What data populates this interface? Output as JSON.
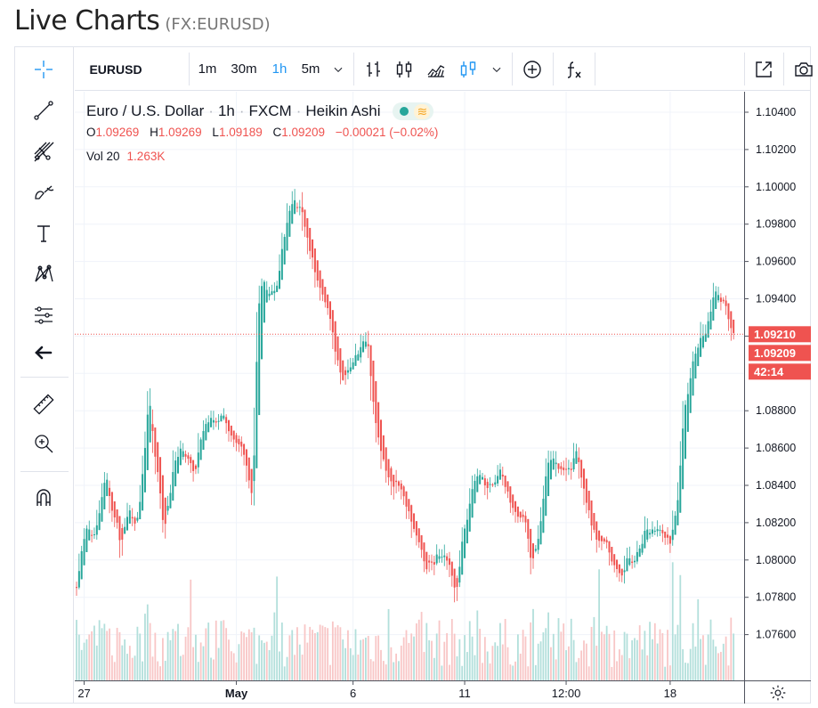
{
  "page": {
    "title": "Live Charts",
    "symbol": "(FX:EURUSD)"
  },
  "toolbar": {
    "symbol": "EURUSD",
    "intervals": [
      "1m",
      "30m",
      "1h",
      "5m"
    ],
    "active_interval": "1h",
    "icons": [
      "chevron-down-icon",
      "bars-icon",
      "candles-icon",
      "area-icon",
      "heikin-ashi-icon",
      "chevron-down-icon",
      "compare-plus-icon",
      "indicators-fx-icon",
      "popout-icon",
      "camera-icon"
    ]
  },
  "left_tools": [
    "crosshair-icon",
    "trend-line-icon",
    "fib-icon",
    "brush-icon",
    "text-icon",
    "pattern-icon",
    "prediction-icon",
    "back-arrow-icon",
    "ruler-icon",
    "zoom-icon",
    "magnet-icon"
  ],
  "legend": {
    "name": "Euro / U.S. Dollar",
    "interval": "1h",
    "source": "FXCM",
    "style": "Heikin Ashi",
    "wave_glyph": "≋",
    "ohlc": [
      {
        "k": "O",
        "v": "1.09269"
      },
      {
        "k": "H",
        "v": "1.09269"
      },
      {
        "k": "L",
        "v": "1.09189"
      },
      {
        "k": "C",
        "v": "1.09209"
      }
    ],
    "change": "−0.00021 (−0.02%)",
    "vol_label": "Vol 20",
    "vol_value": "1.263K"
  },
  "colors": {
    "up": "#26a69a",
    "down": "#ef5350",
    "grid": "#f0f3fa",
    "axis_text": "#131722",
    "vol_up": "#b2dfdb",
    "vol_down": "#f8c6c6"
  },
  "chart_data": {
    "type": "candlestick",
    "style": "Heikin Ashi",
    "title": "Euro / U.S. Dollar",
    "y_ticks": [
      "1.10400",
      "1.10200",
      "1.10000",
      "1.09800",
      "1.09600",
      "1.09400",
      "1.09200",
      "1.08800",
      "1.08600",
      "1.08400",
      "1.08200",
      "1.08000",
      "1.07800",
      "1.07600"
    ],
    "ylim": [
      1.0744,
      1.1054
    ],
    "x_ticks": [
      "27",
      "May",
      "6",
      "11",
      "12:00",
      "18"
    ],
    "price_labels": {
      "high_marker": "1.09210",
      "last": "1.09209",
      "countdown": "42:14",
      "partial_tick": "1"
    },
    "path_points": [
      [
        0,
        1.079
      ],
      [
        3,
        1.0818
      ],
      [
        7,
        1.0812
      ],
      [
        11,
        1.0844
      ],
      [
        14,
        1.0825
      ],
      [
        17,
        1.081
      ],
      [
        20,
        1.0823
      ],
      [
        24,
        1.082
      ],
      [
        28,
        1.0884
      ],
      [
        31,
        1.0852
      ],
      [
        34,
        1.0818
      ],
      [
        38,
        1.085
      ],
      [
        42,
        1.086
      ],
      [
        46,
        1.0847
      ],
      [
        50,
        1.0875
      ],
      [
        53,
        1.0872
      ],
      [
        57,
        1.088
      ],
      [
        61,
        1.0866
      ],
      [
        65,
        1.0858
      ],
      [
        69,
        1.0832
      ],
      [
        71,
        1.093
      ],
      [
        73,
        1.095
      ],
      [
        76,
        1.0942
      ],
      [
        79,
        1.095
      ],
      [
        82,
        1.0978
      ],
      [
        85,
        1.0996
      ],
      [
        88,
        1.0988
      ],
      [
        92,
        1.0965
      ],
      [
        96,
        1.094
      ],
      [
        100,
        1.0925
      ],
      [
        104,
        1.09
      ],
      [
        108,
        1.0903
      ],
      [
        112,
        1.0916
      ],
      [
        114,
        1.0919
      ],
      [
        117,
        1.088
      ],
      [
        120,
        1.0852
      ],
      [
        124,
        1.084
      ],
      [
        128,
        1.0838
      ],
      [
        131,
        1.0825
      ],
      [
        134,
        1.0808
      ],
      [
        137,
        1.08
      ],
      [
        140,
        1.0798
      ],
      [
        143,
        1.0803
      ],
      [
        146,
        1.0795
      ],
      [
        149,
        1.0783
      ],
      [
        152,
        1.0812
      ],
      [
        155,
        1.0835
      ],
      [
        158,
        1.0847
      ],
      [
        161,
        1.0838
      ],
      [
        164,
        1.0843
      ],
      [
        167,
        1.0844
      ],
      [
        170,
        1.083
      ],
      [
        173,
        1.0826
      ],
      [
        176,
        1.082
      ],
      [
        179,
        1.08
      ],
      [
        182,
        1.0815
      ],
      [
        185,
        1.085
      ],
      [
        188,
        1.0855
      ],
      [
        191,
        1.0848
      ],
      [
        194,
        1.0849
      ],
      [
        197,
        1.086
      ],
      [
        200,
        1.0831
      ],
      [
        203,
        1.0813
      ],
      [
        206,
        1.081
      ],
      [
        209,
        1.0806
      ],
      [
        212,
        1.08
      ],
      [
        215,
        1.0795
      ],
      [
        218,
        1.08
      ],
      [
        221,
        1.0806
      ],
      [
        224,
        1.0815
      ],
      [
        227,
        1.0814
      ],
      [
        230,
        1.082
      ],
      [
        233,
        1.0805
      ],
      [
        236,
        1.0825
      ],
      [
        239,
        1.088
      ],
      [
        242,
        1.0905
      ],
      [
        245,
        1.0915
      ],
      [
        248,
        1.0925
      ],
      [
        251,
        1.0948
      ],
      [
        254,
        1.094
      ],
      [
        257,
        1.0925
      ],
      [
        259,
        1.092
      ]
    ],
    "series": [
      {
        "name": "Vol 20",
        "type": "volume"
      }
    ]
  }
}
